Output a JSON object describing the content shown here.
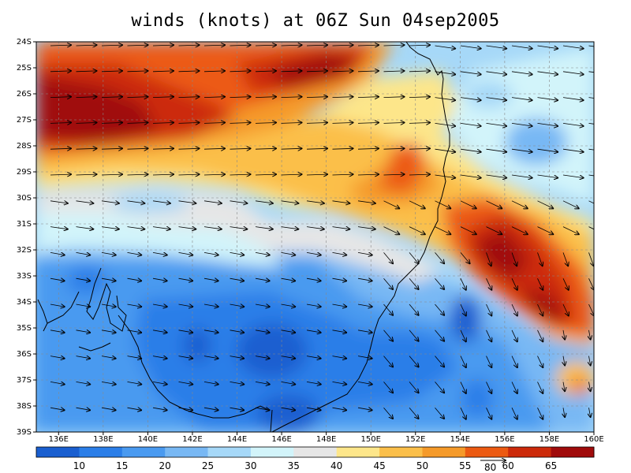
{
  "title": "winds (knots) at 06Z Sun 04sep2005",
  "lat_labels": [
    "24S",
    "25S",
    "26S",
    "27S",
    "28S",
    "29S",
    "30S",
    "31S",
    "32S",
    "33S",
    "34S",
    "35S",
    "36S",
    "37S",
    "38S",
    "39S"
  ],
  "lon_labels": [
    "136E",
    "138E",
    "140E",
    "142E",
    "144E",
    "146E",
    "148E",
    "150E",
    "152E",
    "154E",
    "156E",
    "158E",
    "160E"
  ],
  "colorbar": {
    "colors": [
      "#1a5fd0",
      "#2b7ee8",
      "#4a9af0",
      "#78b8f4",
      "#a6d8f8",
      "#d2f4fa",
      "#e6e6e6",
      "#fde68a",
      "#fbbf4a",
      "#f59a2a",
      "#ec5a12",
      "#cc2a0a",
      "#a00b0b"
    ],
    "labels": [
      "10",
      "15",
      "20",
      "25",
      "30",
      "35",
      "40",
      "45",
      "50",
      "55",
      "60",
      "65"
    ]
  },
  "reference_vector": {
    "label": "80"
  }
}
